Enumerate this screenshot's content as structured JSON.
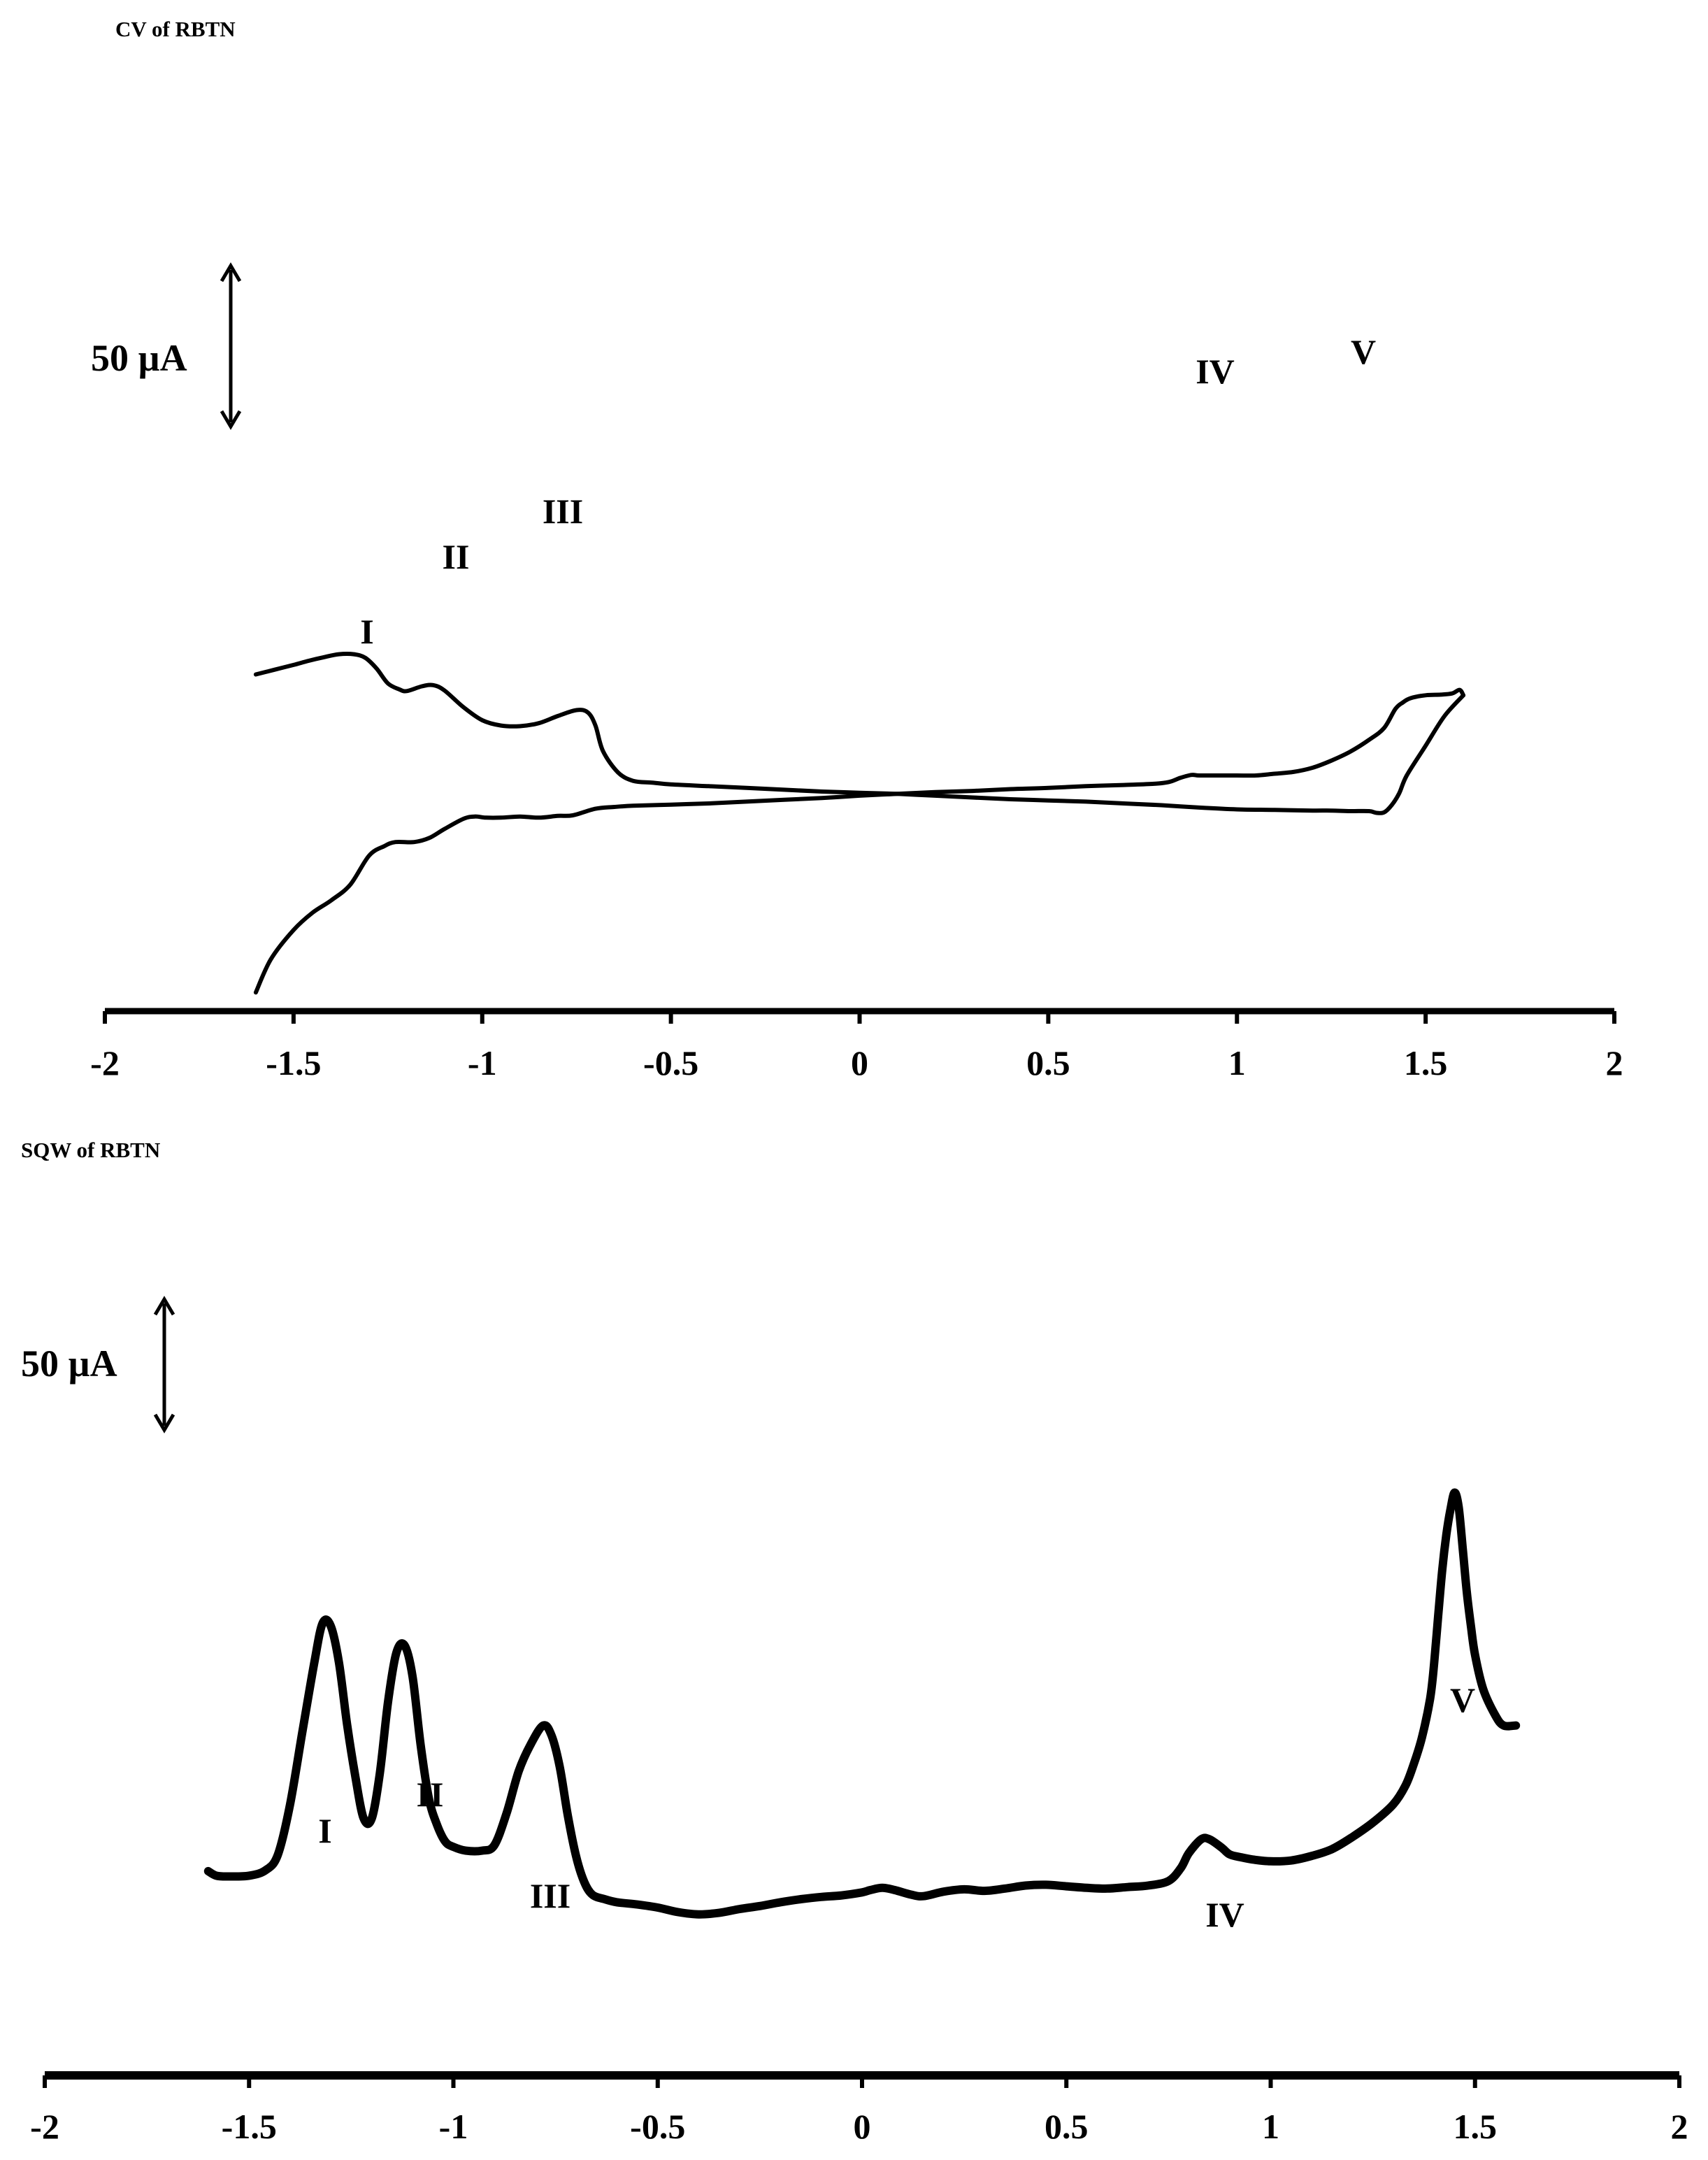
{
  "chart_data": [
    {
      "type": "line",
      "title": "CV  of RBTN",
      "xlabel": "",
      "ylabel": "",
      "xlim": [
        -2,
        2
      ],
      "x_ticks": [
        "-2",
        "-1.5",
        "-1",
        "-0.5",
        "0",
        "0.5",
        "1",
        "1.5",
        "2"
      ],
      "scale_bar": "50 µA",
      "scale_bar_value_uA": 50,
      "peak_labels": [
        "I",
        "II",
        "III",
        "IV",
        "V"
      ],
      "series": [
        {
          "x": [
            -1.6,
            -1.56,
            -1.5,
            -1.45,
            -1.4,
            -1.35,
            -1.3,
            -1.26,
            -1.23,
            -1.18,
            -1.14,
            -1.1,
            -1.05,
            -1.02,
            -0.99,
            -0.95,
            -0.9,
            -0.85,
            -0.8,
            -0.76,
            -0.7,
            -0.65,
            -0.6,
            -0.5,
            -0.4,
            -0.3,
            -0.2,
            -0.1,
            0,
            0.1,
            0.2,
            0.3,
            0.4,
            0.5,
            0.6,
            0.7,
            0.78,
            0.82,
            0.85,
            0.88,
            0.9,
            0.95,
            1,
            1.05,
            1.1,
            1.15,
            1.2,
            1.25,
            1.3,
            1.35,
            1.39,
            1.42,
            1.44,
            1.46,
            1.5,
            1.54,
            1.57,
            1.59,
            1.6
          ],
          "y": [
            -345,
            -289,
            -240,
            -211,
            -190,
            -164,
            -115,
            -99,
            -92,
            -92,
            -85,
            -70,
            -53,
            -49,
            -51,
            -51,
            -49,
            -51,
            -48,
            -47,
            -36,
            -33,
            -31,
            -29,
            -27,
            -24,
            -21,
            -18,
            -14,
            -11,
            -8,
            -6,
            -3,
            -1,
            2,
            4,
            6,
            9,
            16,
            21,
            20,
            20,
            20,
            20,
            23,
            26,
            33,
            45,
            60,
            80,
            100,
            132,
            143,
            150,
            155,
            156,
            158,
            164,
            155
          ]
        },
        {
          "x": [
            1.6,
            1.55,
            1.5,
            1.45,
            1.43,
            1.41,
            1.39,
            1.37,
            1.35,
            1.3,
            1.25,
            1.2,
            1.1,
            1,
            0.9,
            0.8,
            0.7,
            0.6,
            0.5,
            0.4,
            0.3,
            0.2,
            0.1,
            0,
            -0.1,
            -0.2,
            -0.3,
            -0.4,
            -0.5,
            -0.55,
            -0.6,
            -0.64,
            -0.68,
            -0.7,
            -0.72,
            -0.75,
            -0.8,
            -0.85,
            -0.9,
            -0.95,
            -1,
            -1.05,
            -1.1,
            -1.13,
            -1.16,
            -1.2,
            -1.22,
            -1.25,
            -1.28,
            -1.31,
            -1.34,
            -1.38,
            -1.42,
            -1.46,
            -1.5,
            -1.55,
            -1.6
          ],
          "y": [
            155,
            120,
            70,
            20,
            -10,
            -30,
            -42,
            -43,
            -40,
            -40,
            -39,
            -39,
            -38,
            -37,
            -34,
            -30,
            -27,
            -24,
            -22,
            -20,
            -17,
            -14,
            -11,
            -9,
            -7,
            -4,
            -1,
            2,
            5,
            8,
            11,
            25,
            61,
            104,
            126,
            130,
            120,
            108,
            103,
            104,
            113,
            135,
            163,
            172,
            170,
            162,
            165,
            175,
            200,
            218,
            224,
            224,
            219,
            213,
            206,
            198,
            190
          ]
        }
      ]
    },
    {
      "type": "line",
      "title": "SQW of RBTN",
      "xlabel": "",
      "ylabel": "",
      "xlim": [
        -2,
        2
      ],
      "x_ticks": [
        "-2",
        "-1.5",
        "-1",
        "-0.5",
        "0",
        "0.5",
        "1",
        "1.5",
        "2"
      ],
      "scale_bar": "50 µA",
      "scale_bar_value_uA": 50,
      "peak_labels": [
        "I",
        "II",
        "III",
        "IV",
        "V"
      ],
      "series": [
        {
          "x": [
            -1.6,
            -1.58,
            -1.55,
            -1.5,
            -1.46,
            -1.43,
            -1.4,
            -1.37,
            -1.34,
            -1.32,
            -1.3,
            -1.28,
            -1.26,
            -1.24,
            -1.22,
            -1.2,
            -1.18,
            -1.16,
            -1.14,
            -1.12,
            -1.1,
            -1.08,
            -1.06,
            -1.04,
            -1.02,
            -1.0,
            -0.97,
            -0.93,
            -0.9,
            -0.87,
            -0.84,
            -0.81,
            -0.78,
            -0.76,
            -0.74,
            -0.72,
            -0.7,
            -0.68,
            -0.66,
            -0.63,
            -0.6,
            -0.55,
            -0.5,
            -0.45,
            -0.4,
            -0.35,
            -0.3,
            -0.25,
            -0.2,
            -0.15,
            -0.1,
            -0.05,
            0.0,
            0.02,
            0.05,
            0.08,
            0.12,
            0.15,
            0.2,
            0.25,
            0.3,
            0.35,
            0.4,
            0.45,
            0.5,
            0.55,
            0.6,
            0.65,
            0.7,
            0.75,
            0.78,
            0.8,
            0.83,
            0.85,
            0.88,
            0.9,
            0.93,
            0.96,
            1.0,
            1.05,
            1.1,
            1.15,
            1.2,
            1.25,
            1.3,
            1.33,
            1.35,
            1.37,
            1.39,
            1.4,
            1.41,
            1.42,
            1.43,
            1.44,
            1.45,
            1.46,
            1.47,
            1.48,
            1.49,
            1.5,
            1.52,
            1.55,
            1.57,
            1.6
          ],
          "y": [
            13,
            7,
            6,
            7,
            14,
            34,
            100,
            195,
            289,
            340,
            336,
            288,
            206,
            138,
            83,
            82,
            142,
            236,
            300,
            311,
            270,
            179,
            109,
            74,
            52,
            45,
            40,
            40,
            47,
            89,
            145,
            181,
            205,
            192,
            151,
            86,
            33,
            -1,
            -18,
            -24,
            -28,
            -31,
            -35,
            -41,
            -44,
            -42,
            -37,
            -33,
            -28,
            -24,
            -21,
            -19,
            -15,
            -12,
            -9,
            -12,
            -18,
            -20,
            -14,
            -11,
            -13,
            -10,
            -6,
            -5,
            -7,
            -9,
            -10,
            -8,
            -6,
            0,
            17,
            37,
            55,
            55,
            44,
            35,
            31,
            28,
            26,
            27,
            33,
            42,
            58,
            77,
            101,
            126,
            154,
            189,
            240,
            287,
            350,
            411,
            457,
            490,
            512,
            493,
            438,
            380,
            336,
            298,
            253,
            218,
            205,
            205
          ]
        }
      ]
    }
  ]
}
